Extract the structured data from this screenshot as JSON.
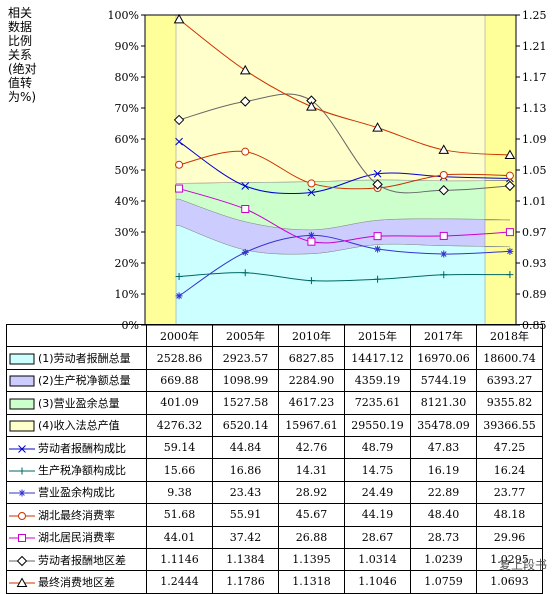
{
  "y_left_label_lines": [
    "相关",
    "数据",
    "比例",
    "关系",
    "(绝对",
    "值转",
    "为%)"
  ],
  "watermark": "复上段书",
  "chart_data": {
    "type": "area",
    "categories": [
      "2000年",
      "2005年",
      "2010年",
      "2015年",
      "2017年",
      "2018年"
    ],
    "y_left_ticks": [
      "100%",
      "90%",
      "80%",
      "70%",
      "60%",
      "50%",
      "40%",
      "30%",
      "20%",
      "10%",
      "0%"
    ],
    "y_right_ticks": [
      "1.25",
      "1.21",
      "1.17",
      "1.13",
      "1.09",
      "1.05",
      "1.01",
      "0.97",
      "0.93",
      "0.89",
      "0.85"
    ],
    "y_left_range": [
      0,
      100
    ],
    "y_right_range": [
      0.85,
      1.25
    ],
    "series": [
      {
        "name": "(1)劳动者报酬总量",
        "kind": "area",
        "color": "#ccffff",
        "values": [
          "2528.86",
          "2923.57",
          "6827.85",
          "14417.12",
          "16970.06",
          "18600.74"
        ]
      },
      {
        "name": "(2)生产税净额总量",
        "kind": "area",
        "color": "#ccccff",
        "values": [
          "669.88",
          "1098.99",
          "2284.90",
          "4359.19",
          "5744.19",
          "6393.27"
        ]
      },
      {
        "name": "(3)营业盈余总量",
        "kind": "area",
        "color": "#ccffcc",
        "values": [
          "401.09",
          "1527.58",
          "4617.23",
          "7235.61",
          "8121.30",
          "9355.82"
        ]
      },
      {
        "name": "(4)收入法总产值",
        "kind": "area",
        "color": "#ffffcc",
        "values": [
          "4276.32",
          "6520.14",
          "15967.61",
          "29550.19",
          "35478.09",
          "39366.55"
        ]
      },
      {
        "name": "劳动者报酬构成比",
        "kind": "line",
        "marker": "x",
        "color": "#0000cc",
        "axis": "left",
        "values": [
          "59.14",
          "44.84",
          "42.76",
          "48.79",
          "47.83",
          "47.25"
        ]
      },
      {
        "name": "生产税净额构成比",
        "kind": "line",
        "marker": "plus",
        "color": "#006666",
        "axis": "left",
        "values": [
          "15.66",
          "16.86",
          "14.31",
          "14.75",
          "16.19",
          "16.24"
        ]
      },
      {
        "name": "营业盈余构成比",
        "kind": "line",
        "marker": "star",
        "color": "#3333cc",
        "axis": "left",
        "values": [
          "9.38",
          "23.43",
          "28.92",
          "24.49",
          "22.89",
          "23.77"
        ]
      },
      {
        "name": "湖北最终消费率",
        "kind": "line",
        "marker": "circle",
        "color": "#cc3300",
        "axis": "left",
        "values": [
          "51.68",
          "55.91",
          "45.67",
          "44.19",
          "48.40",
          "48.18"
        ]
      },
      {
        "name": "湖北居民消费率",
        "kind": "line",
        "marker": "square",
        "color": "#cc00cc",
        "axis": "left",
        "values": [
          "44.01",
          "37.42",
          "26.88",
          "28.67",
          "28.73",
          "29.96"
        ]
      },
      {
        "name": "劳动者报酬地区差",
        "kind": "line",
        "marker": "diamond",
        "color": "#666666",
        "axis": "right",
        "values": [
          "1.1146",
          "1.1384",
          "1.1395",
          "1.0314",
          "1.0239",
          "1.0295"
        ]
      },
      {
        "name": "最终消费地区差",
        "kind": "line",
        "marker": "triangle",
        "color": "#cc3300",
        "axis": "right",
        "values": [
          "1.2444",
          "1.1786",
          "1.1318",
          "1.1046",
          "1.0759",
          "1.0693"
        ]
      }
    ],
    "grid": false,
    "legend": "data-table-below"
  }
}
